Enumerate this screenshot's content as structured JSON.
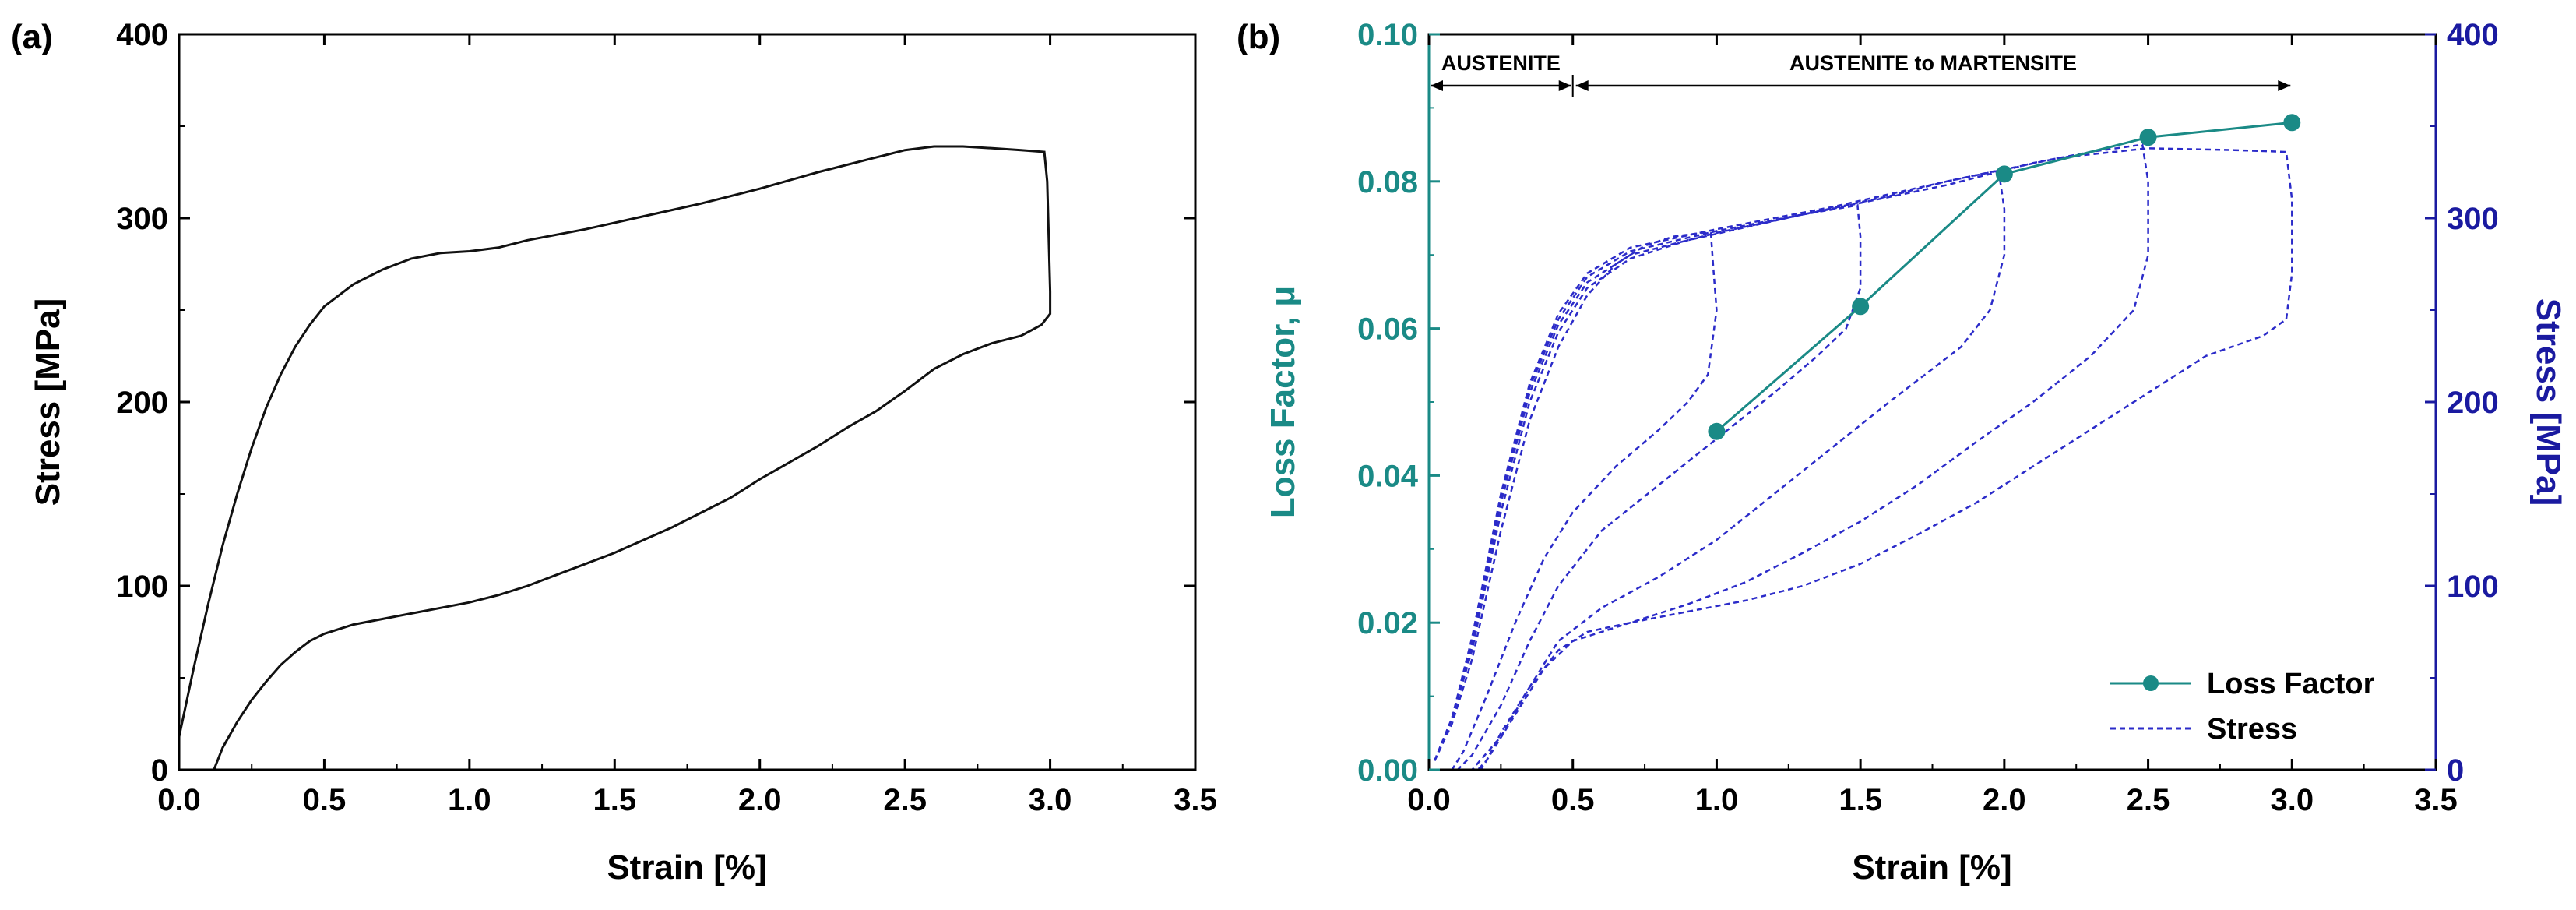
{
  "chart_data": [
    {
      "panel_label": "(a)",
      "type": "line",
      "xlabel": "Strain [%]",
      "ylabel": "Stress [MPa]",
      "xlim": [
        0.0,
        3.5
      ],
      "ylim": [
        0,
        400
      ],
      "x_ticks": [
        "0.0",
        "0.5",
        "1.0",
        "1.5",
        "2.0",
        "2.5",
        "3.0",
        "3.5"
      ],
      "y_ticks": [
        "0",
        "100",
        "200",
        "300",
        "400"
      ],
      "grid": false,
      "series": [
        {
          "color": "#111111",
          "points": [
            [
              0.0,
              18
            ],
            [
              0.05,
              55
            ],
            [
              0.1,
              90
            ],
            [
              0.15,
              122
            ],
            [
              0.2,
              150
            ],
            [
              0.25,
              175
            ],
            [
              0.3,
              197
            ],
            [
              0.35,
              215
            ],
            [
              0.4,
              230
            ],
            [
              0.45,
              242
            ],
            [
              0.5,
              252
            ],
            [
              0.6,
              264
            ],
            [
              0.7,
              272
            ],
            [
              0.8,
              278
            ],
            [
              0.9,
              281
            ],
            [
              1.0,
              282
            ],
            [
              1.1,
              284
            ],
            [
              1.2,
              288
            ],
            [
              1.4,
              294
            ],
            [
              1.6,
              301
            ],
            [
              1.8,
              308
            ],
            [
              2.0,
              316
            ],
            [
              2.2,
              325
            ],
            [
              2.4,
              333
            ],
            [
              2.5,
              337
            ],
            [
              2.6,
              339
            ],
            [
              2.7,
              339
            ],
            [
              2.8,
              338
            ],
            [
              2.9,
              337
            ],
            [
              2.98,
              336
            ],
            [
              2.99,
              320
            ],
            [
              2.995,
              290
            ],
            [
              3.0,
              260
            ],
            [
              3.0,
              248
            ],
            [
              2.97,
              242
            ],
            [
              2.9,
              236
            ],
            [
              2.8,
              232
            ],
            [
              2.7,
              226
            ],
            [
              2.6,
              218
            ],
            [
              2.5,
              206
            ],
            [
              2.4,
              195
            ],
            [
              2.3,
              186
            ],
            [
              2.2,
              176
            ],
            [
              2.1,
              167
            ],
            [
              2.0,
              158
            ],
            [
              1.9,
              148
            ],
            [
              1.8,
              140
            ],
            [
              1.7,
              132
            ],
            [
              1.6,
              125
            ],
            [
              1.5,
              118
            ],
            [
              1.4,
              112
            ],
            [
              1.3,
              106
            ],
            [
              1.2,
              100
            ],
            [
              1.1,
              95
            ],
            [
              1.0,
              91
            ],
            [
              0.9,
              88
            ],
            [
              0.8,
              85
            ],
            [
              0.7,
              82
            ],
            [
              0.6,
              79
            ],
            [
              0.5,
              74
            ],
            [
              0.45,
              70
            ],
            [
              0.4,
              64
            ],
            [
              0.35,
              57
            ],
            [
              0.3,
              48
            ],
            [
              0.25,
              38
            ],
            [
              0.2,
              26
            ],
            [
              0.15,
              12
            ],
            [
              0.12,
              0
            ]
          ]
        }
      ]
    },
    {
      "panel_label": "(b)",
      "type": "line",
      "xlabel": "Strain [%]",
      "ylabel_left": "Loss Factor, μ",
      "ylabel_right": "Stress [MPa]",
      "xlim": [
        0.0,
        3.5
      ],
      "ylim_left": [
        0.0,
        0.1
      ],
      "ylim_right": [
        0,
        400
      ],
      "x_ticks": [
        "0.0",
        "0.5",
        "1.0",
        "1.5",
        "2.0",
        "2.5",
        "3.0",
        "3.5"
      ],
      "y_ticks_left": [
        "0.00",
        "0.02",
        "0.04",
        "0.06",
        "0.08",
        "0.10"
      ],
      "y_ticks_right": [
        "0",
        "100",
        "200",
        "300",
        "400"
      ],
      "grid": false,
      "phases": [
        {
          "label": "AUSTENITE",
          "range": [
            0.0,
            0.5
          ]
        },
        {
          "label": "AUSTENITE to MARTENSITE",
          "range": [
            0.5,
            3.0
          ]
        }
      ],
      "legend": {
        "position": "bottom-right",
        "items": [
          {
            "label": "Loss Factor",
            "color": "#1a8a86",
            "style": "line-marker"
          },
          {
            "label": "Stress",
            "color": "#2b2bc9",
            "style": "dashed"
          }
        ]
      },
      "series": [
        {
          "name": "Loss Factor",
          "axis": "left",
          "color": "#1a8a86",
          "x": [
            1.0,
            1.5,
            2.0,
            2.5,
            3.0
          ],
          "values": [
            0.046,
            0.063,
            0.081,
            0.086,
            0.088
          ]
        },
        {
          "name": "Stress",
          "axis": "right",
          "color": "#2b2bc9",
          "style": "dashed",
          "cycles": [
            {
              "points": [
                [
                  0.02,
                  5
                ],
                [
                  0.08,
                  25
                ],
                [
                  0.15,
                  60
                ],
                [
                  0.25,
                  130
                ],
                [
                  0.35,
                  190
                ],
                [
                  0.45,
                  230
                ],
                [
                  0.55,
                  258
                ],
                [
                  0.65,
                  275
                ],
                [
                  0.75,
                  285
                ],
                [
                  0.85,
                  290
                ],
                [
                  0.95,
                  292
                ],
                [
                  0.98,
                  292
                ],
                [
                  0.99,
                  270
                ],
                [
                  1.0,
                  250
                ],
                [
                  0.97,
                  215
                ],
                [
                  0.9,
                  200
                ],
                [
                  0.8,
                  185
                ],
                [
                  0.65,
                  165
                ],
                [
                  0.5,
                  140
                ],
                [
                  0.4,
                  115
                ],
                [
                  0.3,
                  80
                ],
                [
                  0.2,
                  40
                ],
                [
                  0.12,
                  10
                ],
                [
                  0.08,
                  0
                ]
              ]
            },
            {
              "points": [
                [
                  0.02,
                  5
                ],
                [
                  0.08,
                  28
                ],
                [
                  0.15,
                  65
                ],
                [
                  0.25,
                  140
                ],
                [
                  0.35,
                  200
                ],
                [
                  0.45,
                  238
                ],
                [
                  0.55,
                  262
                ],
                [
                  0.7,
                  278
                ],
                [
                  0.9,
                  288
                ],
                [
                  1.1,
                  295
                ],
                [
                  1.3,
                  302
                ],
                [
                  1.49,
                  307
                ],
                [
                  1.5,
                  290
                ],
                [
                  1.5,
                  262
                ],
                [
                  1.45,
                  240
                ],
                [
                  1.35,
                  225
                ],
                [
                  1.2,
                  205
                ],
                [
                  1.0,
                  180
                ],
                [
                  0.8,
                  155
                ],
                [
                  0.6,
                  130
                ],
                [
                  0.45,
                  100
                ],
                [
                  0.35,
                  70
                ],
                [
                  0.25,
                  35
                ],
                [
                  0.15,
                  8
                ],
                [
                  0.1,
                  0
                ]
              ]
            },
            {
              "points": [
                [
                  0.02,
                  5
                ],
                [
                  0.08,
                  28
                ],
                [
                  0.15,
                  68
                ],
                [
                  0.25,
                  145
                ],
                [
                  0.35,
                  205
                ],
                [
                  0.45,
                  242
                ],
                [
                  0.55,
                  265
                ],
                [
                  0.7,
                  280
                ],
                [
                  1.0,
                  292
                ],
                [
                  1.3,
                  302
                ],
                [
                  1.6,
                  312
                ],
                [
                  1.8,
                  320
                ],
                [
                  1.98,
                  326
                ],
                [
                  2.0,
                  305
                ],
                [
                  2.0,
                  280
                ],
                [
                  1.95,
                  250
                ],
                [
                  1.85,
                  230
                ],
                [
                  1.6,
                  200
                ],
                [
                  1.4,
                  175
                ],
                [
                  1.2,
                  150
                ],
                [
                  1.0,
                  125
                ],
                [
                  0.8,
                  105
                ],
                [
                  0.6,
                  88
                ],
                [
                  0.45,
                  70
                ],
                [
                  0.35,
                  45
                ],
                [
                  0.25,
                  18
                ],
                [
                  0.15,
                  0
                ]
              ]
            },
            {
              "points": [
                [
                  0.02,
                  5
                ],
                [
                  0.08,
                  28
                ],
                [
                  0.15,
                  70
                ],
                [
                  0.25,
                  148
                ],
                [
                  0.35,
                  208
                ],
                [
                  0.45,
                  245
                ],
                [
                  0.55,
                  268
                ],
                [
                  0.7,
                  282
                ],
                [
                  1.0,
                  293
                ],
                [
                  1.4,
                  305
                ],
                [
                  1.8,
                  318
                ],
                [
                  2.1,
                  330
                ],
                [
                  2.3,
                  336
                ],
                [
                  2.48,
                  340
                ],
                [
                  2.5,
                  320
                ],
                [
                  2.5,
                  280
                ],
                [
                  2.45,
                  250
                ],
                [
                  2.3,
                  225
                ],
                [
                  2.1,
                  200
                ],
                [
                  1.9,
                  178
                ],
                [
                  1.7,
                  155
                ],
                [
                  1.5,
                  135
                ],
                [
                  1.3,
                  118
                ],
                [
                  1.1,
                  102
                ],
                [
                  0.9,
                  90
                ],
                [
                  0.7,
                  80
                ],
                [
                  0.5,
                  70
                ],
                [
                  0.4,
                  55
                ],
                [
                  0.3,
                  30
                ],
                [
                  0.2,
                  5
                ],
                [
                  0.17,
                  0
                ]
              ]
            },
            {
              "points": [
                [
                  0.02,
                  5
                ],
                [
                  0.08,
                  28
                ],
                [
                  0.15,
                  72
                ],
                [
                  0.25,
                  150
                ],
                [
                  0.35,
                  210
                ],
                [
                  0.45,
                  248
                ],
                [
                  0.55,
                  270
                ],
                [
                  0.7,
                  284
                ],
                [
                  1.0,
                  294
                ],
                [
                  1.4,
                  306
                ],
                [
                  1.8,
                  320
                ],
                [
                  2.2,
                  333
                ],
                [
                  2.5,
                  338
                ],
                [
                  2.8,
                  337
                ],
                [
                  2.98,
                  336
                ],
                [
                  3.0,
                  310
                ],
                [
                  3.0,
                  270
                ],
                [
                  2.98,
                  245
                ],
                [
                  2.9,
                  236
                ],
                [
                  2.7,
                  225
                ],
                [
                  2.5,
                  205
                ],
                [
                  2.3,
                  185
                ],
                [
                  2.1,
                  165
                ],
                [
                  1.9,
                  145
                ],
                [
                  1.7,
                  128
                ],
                [
                  1.5,
                  112
                ],
                [
                  1.3,
                  100
                ],
                [
                  1.1,
                  92
                ],
                [
                  0.9,
                  86
                ],
                [
                  0.7,
                  80
                ],
                [
                  0.55,
                  75
                ],
                [
                  0.45,
                  65
                ],
                [
                  0.35,
                  45
                ],
                [
                  0.25,
                  20
                ],
                [
                  0.2,
                  5
                ],
                [
                  0.18,
                  0
                ]
              ]
            }
          ]
        }
      ]
    }
  ]
}
